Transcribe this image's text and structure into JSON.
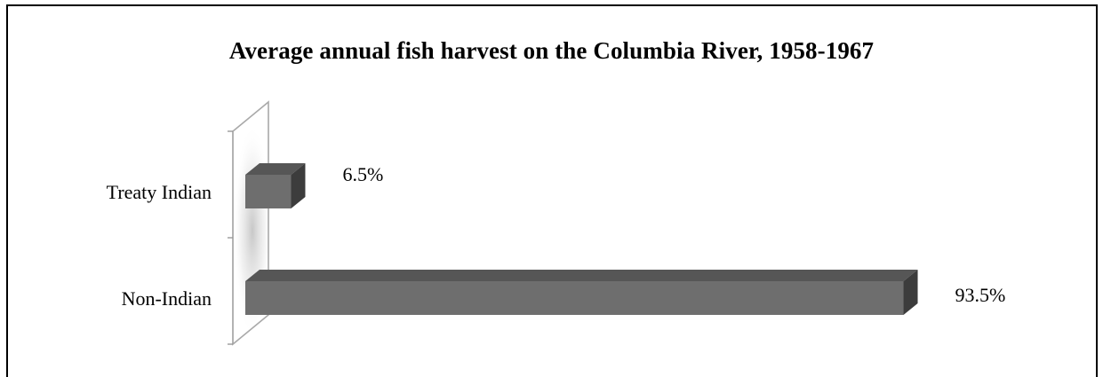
{
  "chart_data": {
    "type": "bar",
    "orientation": "horizontal",
    "title": "Average annual fish harvest on the Columbia River, 1958-1967",
    "categories": [
      "Treaty Indian",
      "Non-Indian"
    ],
    "values": [
      6.5,
      93.5
    ],
    "data_labels": [
      "6.5%",
      "93.5%"
    ],
    "unit": "%",
    "xlabel": "",
    "ylabel": "",
    "xlim": [
      0,
      100
    ],
    "grid": false,
    "legend": "none",
    "style": "3d",
    "colors": {
      "bar_front": "#6e6e6e",
      "bar_top": "#565656",
      "bar_side": "#3c3c3c",
      "wall": "#a9a9a9"
    }
  }
}
